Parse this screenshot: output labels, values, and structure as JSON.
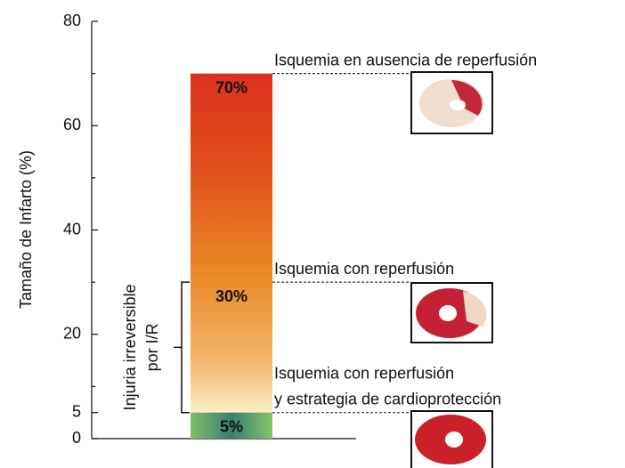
{
  "chart_data": {
    "type": "bar",
    "ylabel": "Tamaño de Infarto (%)",
    "ylim": [
      0,
      80
    ],
    "yticks": [
      0,
      5,
      20,
      40,
      60,
      80
    ],
    "minor_yticks": [
      10,
      30,
      50,
      70
    ],
    "values": [
      70,
      30,
      5
    ],
    "value_labels": [
      "70%",
      "30%",
      "5%"
    ],
    "annotations": [
      [
        "Isquemia en ausencia de reperfusión"
      ],
      [
        "Isquemia con reperfusión"
      ],
      [
        "Isquemia con reperfusión",
        "y estrategia de cardioprotección"
      ]
    ],
    "bracket": {
      "range": [
        5,
        30
      ],
      "label": [
        "Injuria irreversible",
        "por I/R"
      ]
    }
  }
}
